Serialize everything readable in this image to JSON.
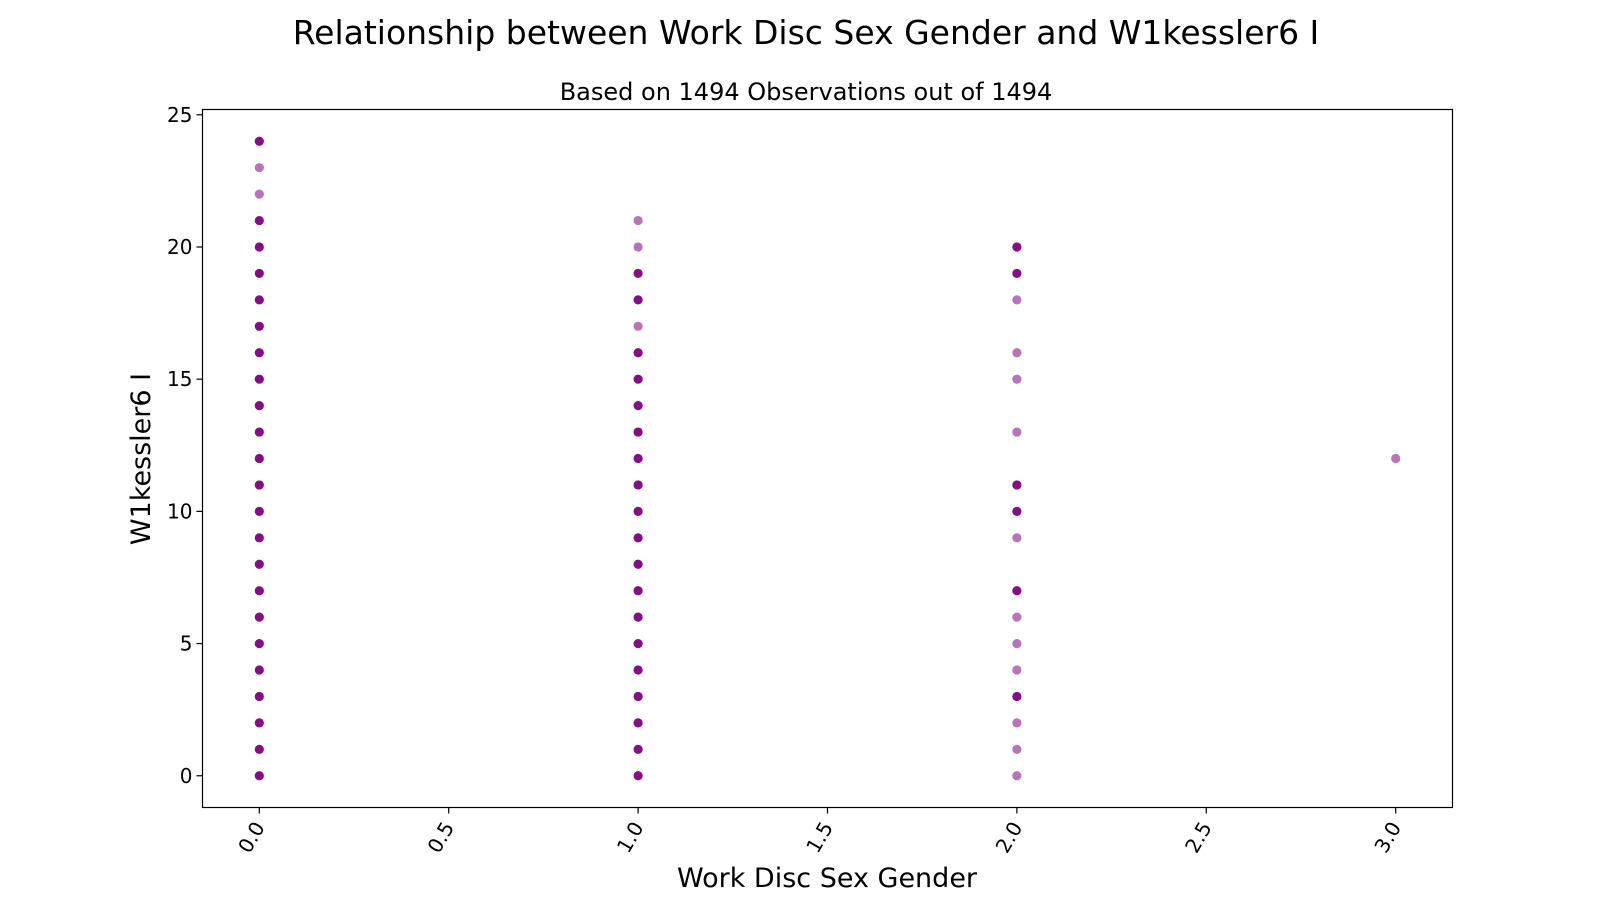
{
  "chart_data": {
    "type": "scatter",
    "title": "Relationship between Work Disc Sex Gender and W1kessler6 I",
    "subtitle": "Based on 1494 Observations out of 1494",
    "xlabel": "Work Disc Sex Gender",
    "ylabel": "W1kessler6 I",
    "xlim": [
      -0.15,
      3.15
    ],
    "ylim": [
      -1.2,
      25.2
    ],
    "xticks": [
      0.0,
      0.5,
      1.0,
      1.5,
      2.0,
      2.5,
      3.0
    ],
    "xtick_labels": [
      "0.0",
      "0.5",
      "1.0",
      "1.5",
      "2.0",
      "2.5",
      "3.0"
    ],
    "yticks": [
      0,
      5,
      10,
      15,
      20,
      25
    ],
    "ytick_labels": [
      "0",
      "5",
      "10",
      "15",
      "20",
      "25"
    ],
    "marker_color": "#800080",
    "grid": false,
    "points": [
      {
        "x": 0,
        "y": 0,
        "dense": true
      },
      {
        "x": 0,
        "y": 1,
        "dense": true
      },
      {
        "x": 0,
        "y": 2,
        "dense": true
      },
      {
        "x": 0,
        "y": 3,
        "dense": true
      },
      {
        "x": 0,
        "y": 4,
        "dense": true
      },
      {
        "x": 0,
        "y": 5,
        "dense": true
      },
      {
        "x": 0,
        "y": 6,
        "dense": true
      },
      {
        "x": 0,
        "y": 7,
        "dense": true
      },
      {
        "x": 0,
        "y": 8,
        "dense": true
      },
      {
        "x": 0,
        "y": 9,
        "dense": true
      },
      {
        "x": 0,
        "y": 10,
        "dense": true
      },
      {
        "x": 0,
        "y": 11,
        "dense": true
      },
      {
        "x": 0,
        "y": 12,
        "dense": true
      },
      {
        "x": 0,
        "y": 13,
        "dense": true
      },
      {
        "x": 0,
        "y": 14,
        "dense": true
      },
      {
        "x": 0,
        "y": 15,
        "dense": true
      },
      {
        "x": 0,
        "y": 16,
        "dense": true
      },
      {
        "x": 0,
        "y": 17,
        "dense": true
      },
      {
        "x": 0,
        "y": 18,
        "dense": true
      },
      {
        "x": 0,
        "y": 19,
        "dense": true
      },
      {
        "x": 0,
        "y": 20,
        "dense": true
      },
      {
        "x": 0,
        "y": 21,
        "dense": true
      },
      {
        "x": 0,
        "y": 22,
        "dense": false
      },
      {
        "x": 0,
        "y": 23,
        "dense": false
      },
      {
        "x": 0,
        "y": 24,
        "dense": true
      },
      {
        "x": 1,
        "y": 0,
        "dense": true
      },
      {
        "x": 1,
        "y": 1,
        "dense": true
      },
      {
        "x": 1,
        "y": 2,
        "dense": true
      },
      {
        "x": 1,
        "y": 3,
        "dense": true
      },
      {
        "x": 1,
        "y": 4,
        "dense": true
      },
      {
        "x": 1,
        "y": 5,
        "dense": true
      },
      {
        "x": 1,
        "y": 6,
        "dense": true
      },
      {
        "x": 1,
        "y": 7,
        "dense": true
      },
      {
        "x": 1,
        "y": 8,
        "dense": true
      },
      {
        "x": 1,
        "y": 9,
        "dense": true
      },
      {
        "x": 1,
        "y": 10,
        "dense": true
      },
      {
        "x": 1,
        "y": 11,
        "dense": true
      },
      {
        "x": 1,
        "y": 12,
        "dense": true
      },
      {
        "x": 1,
        "y": 13,
        "dense": true
      },
      {
        "x": 1,
        "y": 14,
        "dense": true
      },
      {
        "x": 1,
        "y": 15,
        "dense": true
      },
      {
        "x": 1,
        "y": 16,
        "dense": true
      },
      {
        "x": 1,
        "y": 17,
        "dense": false
      },
      {
        "x": 1,
        "y": 18,
        "dense": true
      },
      {
        "x": 1,
        "y": 19,
        "dense": true
      },
      {
        "x": 1,
        "y": 20,
        "dense": false
      },
      {
        "x": 1,
        "y": 21,
        "dense": false
      },
      {
        "x": 2,
        "y": 0,
        "dense": false
      },
      {
        "x": 2,
        "y": 1,
        "dense": false
      },
      {
        "x": 2,
        "y": 2,
        "dense": false
      },
      {
        "x": 2,
        "y": 3,
        "dense": true
      },
      {
        "x": 2,
        "y": 4,
        "dense": false
      },
      {
        "x": 2,
        "y": 5,
        "dense": false
      },
      {
        "x": 2,
        "y": 6,
        "dense": false
      },
      {
        "x": 2,
        "y": 7,
        "dense": true
      },
      {
        "x": 2,
        "y": 9,
        "dense": false
      },
      {
        "x": 2,
        "y": 10,
        "dense": true
      },
      {
        "x": 2,
        "y": 11,
        "dense": true
      },
      {
        "x": 2,
        "y": 13,
        "dense": false
      },
      {
        "x": 2,
        "y": 15,
        "dense": false
      },
      {
        "x": 2,
        "y": 16,
        "dense": false
      },
      {
        "x": 2,
        "y": 18,
        "dense": false
      },
      {
        "x": 2,
        "y": 19,
        "dense": true
      },
      {
        "x": 2,
        "y": 20,
        "dense": true
      },
      {
        "x": 3,
        "y": 12,
        "dense": false
      }
    ]
  }
}
